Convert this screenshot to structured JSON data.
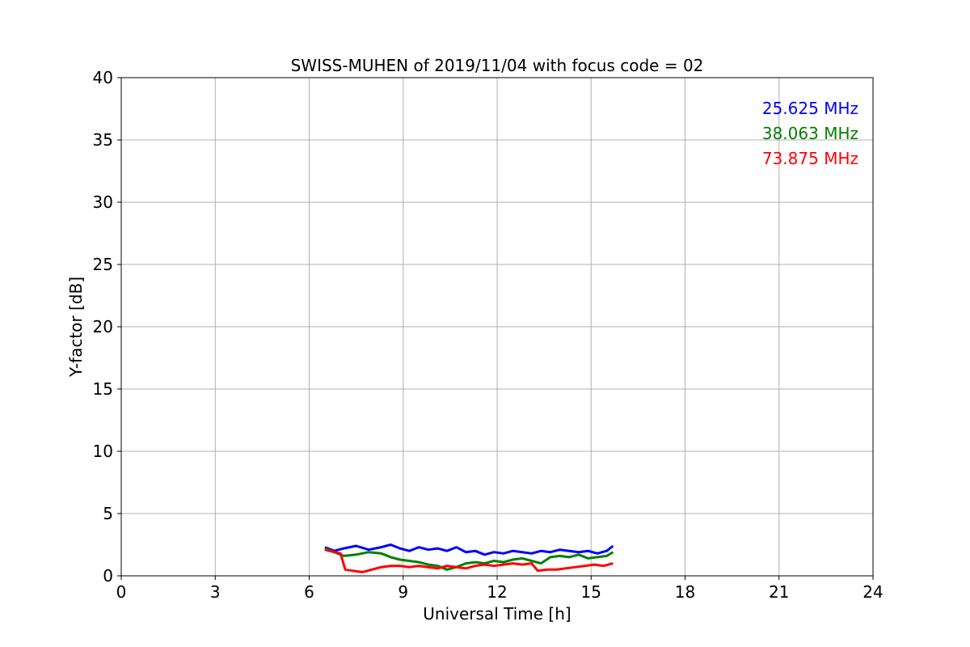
{
  "chart_data": {
    "type": "line",
    "title": "SWISS-MUHEN of 2019/11/04 with focus code = 02",
    "xlabel": "Universal Time [h]",
    "ylabel": "Y-factor [dB]",
    "xlim": [
      0,
      24
    ],
    "ylim": [
      0,
      40
    ],
    "xticks": [
      0,
      3,
      6,
      9,
      12,
      15,
      18,
      21,
      24
    ],
    "yticks": [
      0,
      5,
      10,
      15,
      20,
      25,
      30,
      35,
      40
    ],
    "grid": true,
    "legend_position": "top-right",
    "series": [
      {
        "name": "25.625 MHz",
        "color": "#0000ff",
        "x": [
          6.5,
          6.8,
          7.1,
          7.5,
          7.9,
          8.3,
          8.6,
          8.9,
          9.2,
          9.5,
          9.8,
          10.1,
          10.4,
          10.7,
          11.0,
          11.3,
          11.6,
          11.9,
          12.2,
          12.5,
          12.8,
          13.1,
          13.4,
          13.7,
          14.0,
          14.3,
          14.6,
          14.9,
          15.2,
          15.5,
          15.7
        ],
        "y": [
          2.3,
          2.0,
          2.2,
          2.4,
          2.1,
          2.3,
          2.5,
          2.2,
          2.0,
          2.3,
          2.1,
          2.2,
          2.0,
          2.3,
          1.9,
          2.0,
          1.7,
          1.9,
          1.8,
          2.0,
          1.9,
          1.8,
          2.0,
          1.9,
          2.1,
          2.0,
          1.9,
          2.0,
          1.8,
          2.0,
          2.4
        ]
      },
      {
        "name": "38.063 MHz",
        "color": "#008000",
        "x": [
          6.5,
          6.8,
          7.1,
          7.5,
          7.9,
          8.3,
          8.6,
          8.9,
          9.2,
          9.5,
          9.8,
          10.1,
          10.4,
          10.7,
          11.0,
          11.3,
          11.6,
          11.9,
          12.2,
          12.5,
          12.8,
          13.1,
          13.4,
          13.7,
          14.0,
          14.3,
          14.6,
          14.9,
          15.2,
          15.5,
          15.7
        ],
        "y": [
          2.2,
          1.9,
          1.6,
          1.7,
          1.9,
          1.8,
          1.5,
          1.3,
          1.2,
          1.1,
          0.9,
          0.8,
          0.5,
          0.7,
          1.0,
          1.1,
          1.0,
          1.2,
          1.1,
          1.3,
          1.4,
          1.2,
          1.0,
          1.5,
          1.6,
          1.5,
          1.7,
          1.4,
          1.5,
          1.6,
          1.9
        ]
      },
      {
        "name": "73.875 MHz",
        "color": "#ff0000",
        "x": [
          6.5,
          6.8,
          7.0,
          7.15,
          7.4,
          7.7,
          8.0,
          8.3,
          8.6,
          8.9,
          9.2,
          9.5,
          9.8,
          10.1,
          10.4,
          10.7,
          11.0,
          11.3,
          11.6,
          11.9,
          12.2,
          12.5,
          12.8,
          13.1,
          13.3,
          13.6,
          13.9,
          14.2,
          14.5,
          14.8,
          15.1,
          15.4,
          15.7
        ],
        "y": [
          2.1,
          1.9,
          1.8,
          0.5,
          0.4,
          0.3,
          0.5,
          0.7,
          0.8,
          0.8,
          0.7,
          0.8,
          0.7,
          0.6,
          0.8,
          0.7,
          0.6,
          0.8,
          0.9,
          0.8,
          0.9,
          1.0,
          0.9,
          1.0,
          0.4,
          0.5,
          0.5,
          0.6,
          0.7,
          0.8,
          0.9,
          0.8,
          1.0
        ]
      }
    ]
  }
}
